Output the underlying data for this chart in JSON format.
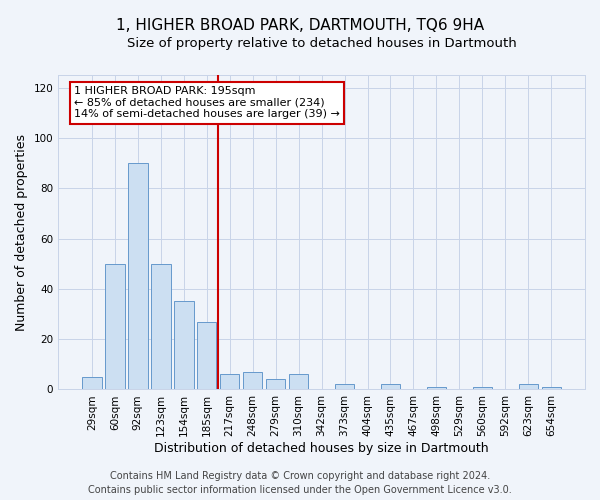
{
  "title": "1, HIGHER BROAD PARK, DARTMOUTH, TQ6 9HA",
  "subtitle": "Size of property relative to detached houses in Dartmouth",
  "xlabel": "Distribution of detached houses by size in Dartmouth",
  "ylabel": "Number of detached properties",
  "bar_labels": [
    "29sqm",
    "60sqm",
    "92sqm",
    "123sqm",
    "154sqm",
    "185sqm",
    "217sqm",
    "248sqm",
    "279sqm",
    "310sqm",
    "342sqm",
    "373sqm",
    "404sqm",
    "435sqm",
    "467sqm",
    "498sqm",
    "529sqm",
    "560sqm",
    "592sqm",
    "623sqm",
    "654sqm"
  ],
  "bar_values": [
    5,
    50,
    90,
    50,
    35,
    27,
    6,
    7,
    4,
    6,
    0,
    2,
    0,
    2,
    0,
    1,
    0,
    1,
    0,
    2,
    1
  ],
  "bar_color": "#ccdff2",
  "bar_edge_color": "#6699cc",
  "vline_x_index": 5.5,
  "vline_color": "#cc0000",
  "annotation_lines": [
    "1 HIGHER BROAD PARK: 195sqm",
    "← 85% of detached houses are smaller (234)",
    "14% of semi-detached houses are larger (39) →"
  ],
  "ylim": [
    0,
    125
  ],
  "yticks": [
    0,
    20,
    40,
    60,
    80,
    100,
    120
  ],
  "footer_line1": "Contains HM Land Registry data © Crown copyright and database right 2024.",
  "footer_line2": "Contains public sector information licensed under the Open Government Licence v3.0.",
  "bg_color": "#f0f4fa",
  "grid_color": "#c8d4e8",
  "title_fontsize": 11,
  "subtitle_fontsize": 9.5,
  "axis_label_fontsize": 9,
  "tick_fontsize": 7.5,
  "annotation_fontsize": 8,
  "footer_fontsize": 7
}
